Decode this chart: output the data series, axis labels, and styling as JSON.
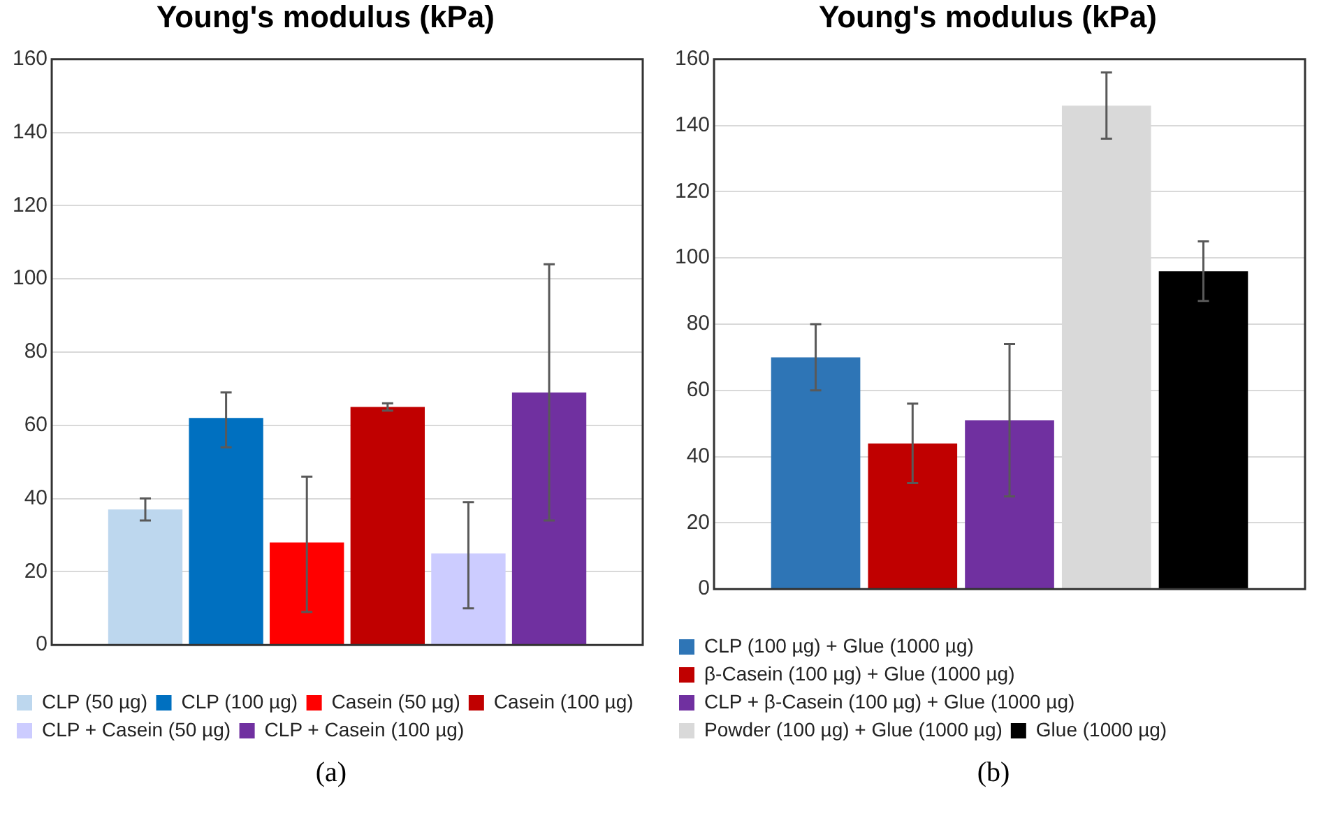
{
  "chart_data": [
    {
      "type": "bar",
      "title": "Young's modulus (kPa)",
      "categories": [
        null
      ],
      "ylim": [
        0,
        160
      ],
      "yticks": [
        0,
        20,
        40,
        60,
        80,
        100,
        120,
        140,
        160
      ],
      "grid": "y",
      "legend": "bottom",
      "annotations": [
        "(a)"
      ],
      "series": [
        {
          "name": "CLP (50 µg)",
          "color": "#bdd7ee",
          "values": [
            37
          ],
          "errors": [
            [
              34,
              40
            ]
          ]
        },
        {
          "name": "CLP (100 µg)",
          "color": "#0070c0",
          "values": [
            62
          ],
          "errors": [
            [
              54,
              69
            ]
          ]
        },
        {
          "name": "Casein (50 µg)",
          "color": "#ff0000",
          "values": [
            28
          ],
          "errors": [
            [
              9,
              46
            ]
          ]
        },
        {
          "name": "Casein (100 µg)",
          "color": "#c00000",
          "values": [
            65
          ],
          "errors": [
            [
              64,
              66
            ]
          ]
        },
        {
          "name": "CLP + Casein (50 µg)",
          "color": "#ccccff",
          "values": [
            25
          ],
          "errors": [
            [
              10,
              39
            ]
          ]
        },
        {
          "name": "CLP + Casein (100 µg)",
          "color": "#7030a0",
          "values": [
            69
          ],
          "errors": [
            [
              34,
              104
            ]
          ]
        }
      ]
    },
    {
      "type": "bar",
      "title": "Young's modulus (kPa)",
      "categories": [
        null
      ],
      "ylim": [
        0,
        160
      ],
      "yticks": [
        0,
        20,
        40,
        60,
        80,
        100,
        120,
        140,
        160
      ],
      "grid": "y",
      "legend": "bottom",
      "annotations": [
        "(b)"
      ],
      "series": [
        {
          "name": "CLP (100 µg) + Glue (1000 µg)",
          "color": "#2e75b6",
          "values": [
            70
          ],
          "errors": [
            [
              60,
              80
            ]
          ]
        },
        {
          "name": "β-Casein (100 µg) + Glue (1000 µg)",
          "color": "#c00000",
          "values": [
            44
          ],
          "errors": [
            [
              32,
              56
            ]
          ]
        },
        {
          "name": "CLP + β-Casein (100 µg) + Glue (1000 µg)",
          "color": "#7030a0",
          "values": [
            51
          ],
          "errors": [
            [
              28,
              74
            ]
          ]
        },
        {
          "name": "Powder (100 µg) + Glue (1000 µg)",
          "color": "#d9d9d9",
          "values": [
            146
          ],
          "errors": [
            [
              136,
              156
            ]
          ]
        },
        {
          "name": "Glue (1000 µg)",
          "color": "#000000",
          "values": [
            96
          ],
          "errors": [
            [
              87,
              105
            ]
          ]
        }
      ]
    }
  ]
}
